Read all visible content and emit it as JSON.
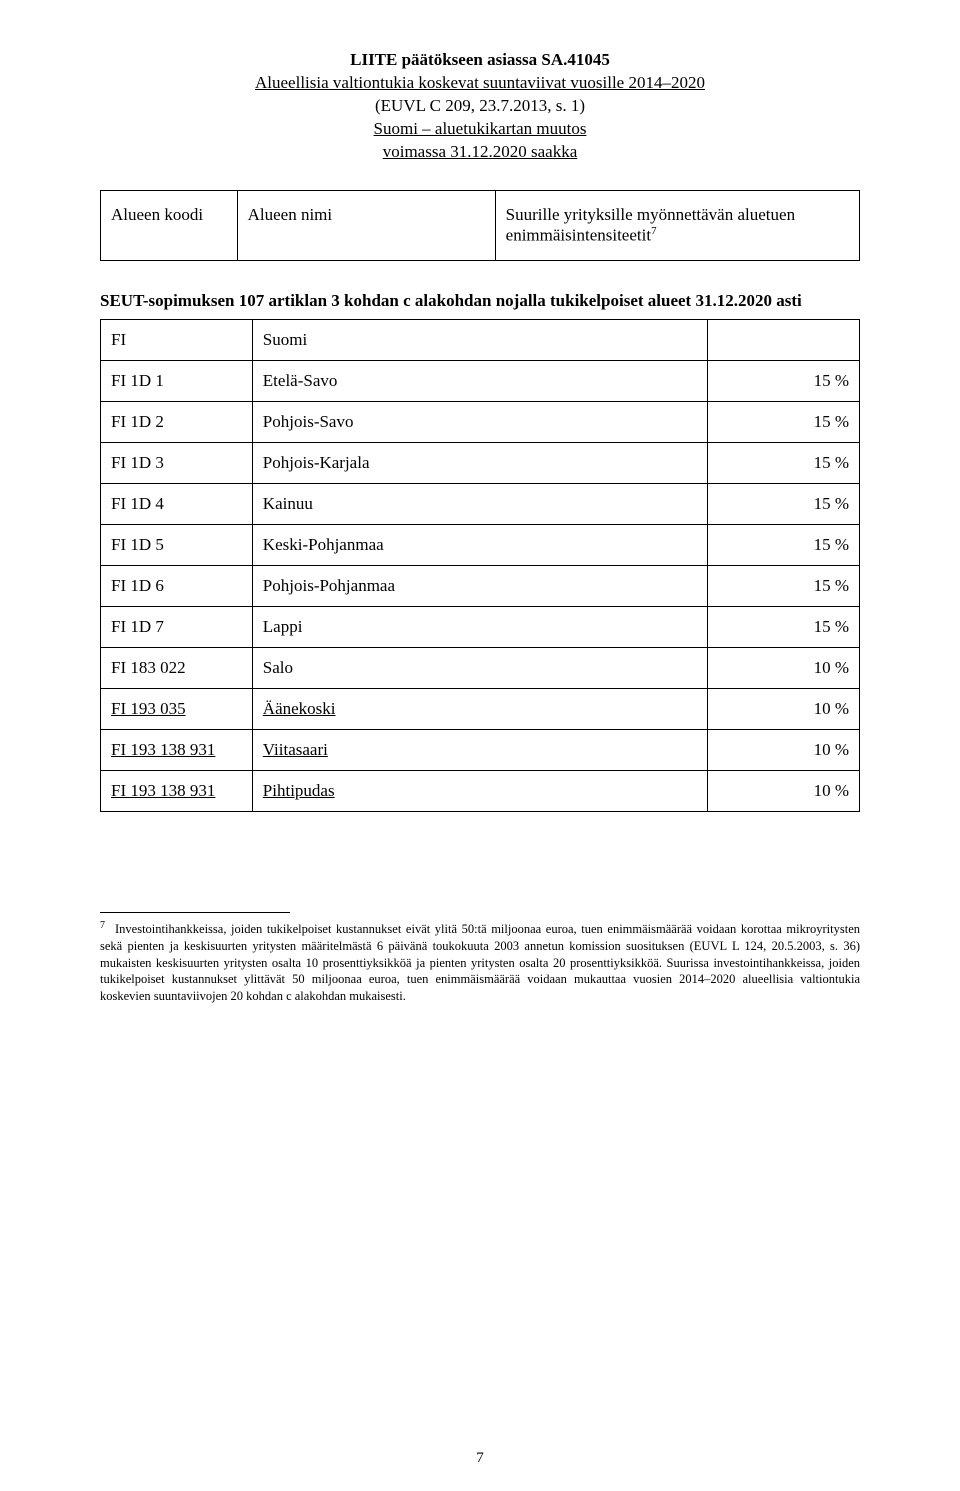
{
  "title": {
    "line1": "LIITE päätökseen asiassa SA.41045",
    "line2": "Alueellisia valtiontukia koskevat suuntaviivat vuosille 2014–2020",
    "line3": "(EUVL C 209, 23.7.2013, s. 1)",
    "line4": "Suomi – aluetukikartan muutos",
    "line5": "voimassa 31.12.2020 saakka"
  },
  "header_box": {
    "col1": "Alueen koodi",
    "col2": "Alueen nimi",
    "col3_prefix": "Suurille yrityksille myönnettävän aluetuen enimmäisintensiteetit",
    "col3_sup": "7"
  },
  "section_heading": "SEUT-sopimuksen 107 artiklan 3 kohdan c alakohdan nojalla tukikelpoiset alueet 31.12.2020 asti",
  "country_row": {
    "code": "FI",
    "name": "Suomi"
  },
  "rows": [
    {
      "code": "FI 1D 1",
      "name": "Etelä-Savo",
      "pct": "15 %",
      "underline": false
    },
    {
      "code": "FI 1D 2",
      "name": "Pohjois-Savo",
      "pct": "15 %",
      "underline": false
    },
    {
      "code": "FI 1D 3",
      "name": "Pohjois-Karjala",
      "pct": "15 %",
      "underline": false
    },
    {
      "code": "FI 1D 4",
      "name": "Kainuu",
      "pct": "15 %",
      "underline": false
    },
    {
      "code": "FI 1D 5",
      "name": "Keski-Pohjanmaa",
      "pct": "15 %",
      "underline": false
    },
    {
      "code": "FI 1D 6",
      "name": "Pohjois-Pohjanmaa",
      "pct": "15 %",
      "underline": false
    },
    {
      "code": "FI 1D 7",
      "name": "Lappi",
      "pct": "15 %",
      "underline": false
    },
    {
      "code": "FI 183 022",
      "name": "Salo",
      "pct": "10 %",
      "underline": false
    },
    {
      "code": "FI 193 035",
      "name": "Äänekoski",
      "pct": "10 %",
      "underline": true
    },
    {
      "code": "FI 193 138 931",
      "name": "Viitasaari",
      "pct": "10 %",
      "underline": true
    },
    {
      "code": "FI 193 138 931",
      "name": "Pihtipudas",
      "pct": "10 %",
      "underline": true
    }
  ],
  "footnote": {
    "num": "7",
    "text": "Investointihankkeissa, joiden tukikelpoiset kustannukset eivät ylitä 50:tä miljoonaa euroa, tuen enimmäismäärää voidaan korottaa mikroyritysten sekä pienten ja keskisuurten yritysten määritelmästä 6 päivänä toukokuuta 2003 annetun komission suosituksen (EUVL L 124, 20.5.2003, s. 36) mukaisten keskisuurten yritysten osalta 10 prosenttiyksikköä ja pienten yritysten osalta 20 prosenttiyksikköä. Suurissa investointihankkeissa, joiden tukikelpoiset kustannukset ylittävät 50 miljoonaa euroa, tuen enimmäismäärää voidaan mukauttaa vuosien 2014–2020 alueellisia valtiontukia koskevien suuntaviivojen 20 kohdan c alakohdan mukaisesti."
  },
  "page_number": "7"
}
